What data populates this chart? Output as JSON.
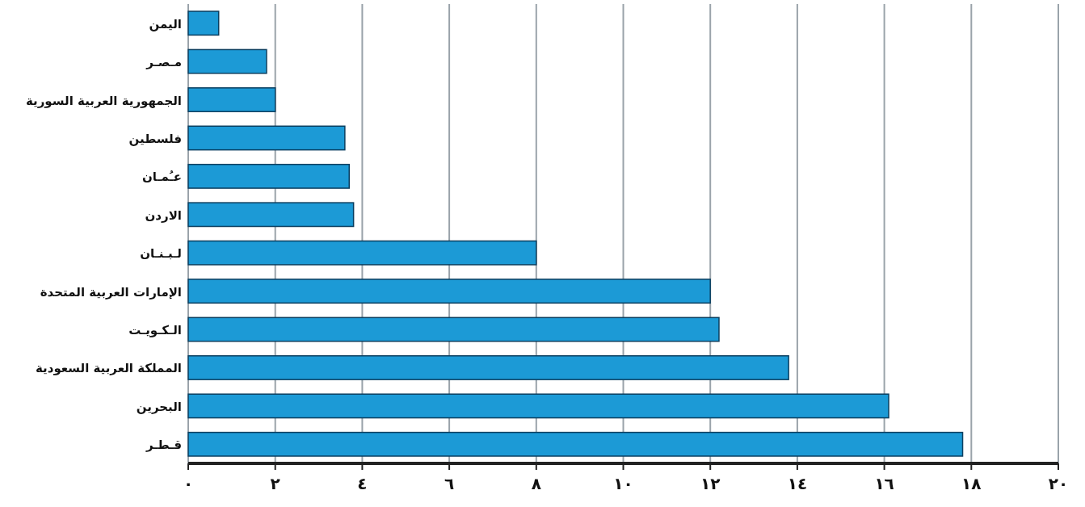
{
  "chart_data": {
    "type": "bar",
    "orientation": "horizontal",
    "categories": [
      "اليمن",
      "مـصـر",
      "الجمهورية العربية السورية",
      "فلسطين",
      "عـُمـان",
      "الاردن",
      "لـبـنـان",
      "الإمارات العربية المتحدة",
      "الـكـويـت",
      "المملكة العربية السعودية",
      "البحرين",
      "قـطـر"
    ],
    "values": [
      0.7,
      1.8,
      2.0,
      3.6,
      3.7,
      3.8,
      8.0,
      12.0,
      12.2,
      13.8,
      16.1,
      17.8
    ],
    "color": "#1c9ad6",
    "xlim": [
      0,
      20
    ],
    "xticks": [
      {
        "value": 0,
        "label": "٠"
      },
      {
        "value": 2,
        "label": "٢"
      },
      {
        "value": 4,
        "label": "٤"
      },
      {
        "value": 6,
        "label": "٦"
      },
      {
        "value": 8,
        "label": "٨"
      },
      {
        "value": 10,
        "label": "١٠"
      },
      {
        "value": 12,
        "label": "١٢"
      },
      {
        "value": 14,
        "label": "١٤"
      },
      {
        "value": 16,
        "label": "١٦"
      },
      {
        "value": 18,
        "label": "١٨"
      },
      {
        "value": 20,
        "label": "٢٠"
      }
    ],
    "grid": "x"
  }
}
